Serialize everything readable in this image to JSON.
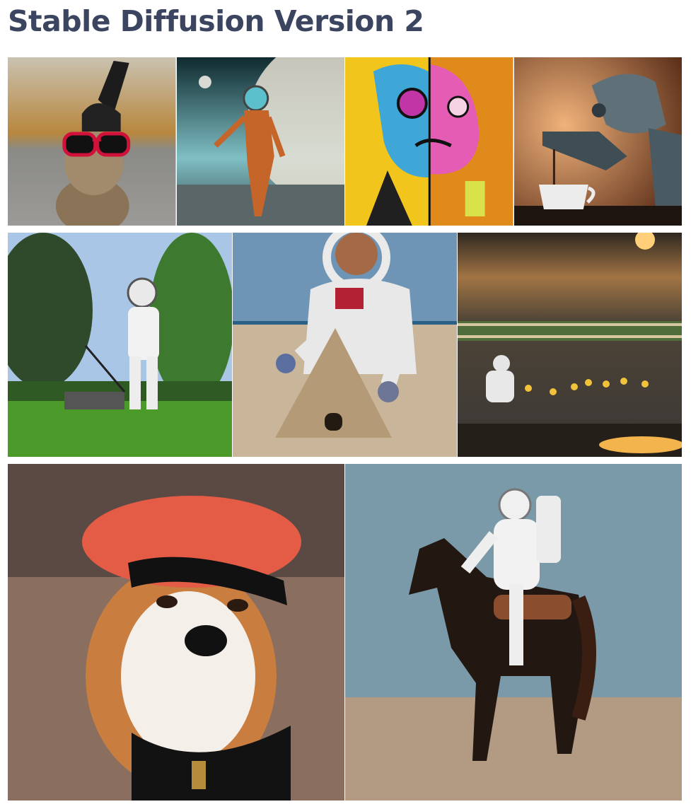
{
  "page": {
    "title": "Stable Diffusion Version 2"
  },
  "gallery": {
    "rows": [
      {
        "images": [
          {
            "subject": "rabbit wearing knit beanie and red sunglasses"
          },
          {
            "subject": "astronaut in orange suit on alien planet"
          },
          {
            "subject": "surreal colorful split-face portrait painting"
          },
          {
            "subject": "robot pouring coffee into a cup"
          }
        ]
      },
      {
        "images": [
          {
            "subject": "astronaut mowing a lawn"
          },
          {
            "subject": "astronaut building a sandcastle pyramid"
          },
          {
            "subject": "astronaut with ducklings at sunset"
          }
        ]
      },
      {
        "images": [
          {
            "subject": "shiba inu wearing a red beret"
          },
          {
            "subject": "astronaut riding a horse in the desert"
          }
        ]
      }
    ]
  },
  "colors": {
    "title": "#3b4560",
    "background": "#ffffff"
  }
}
